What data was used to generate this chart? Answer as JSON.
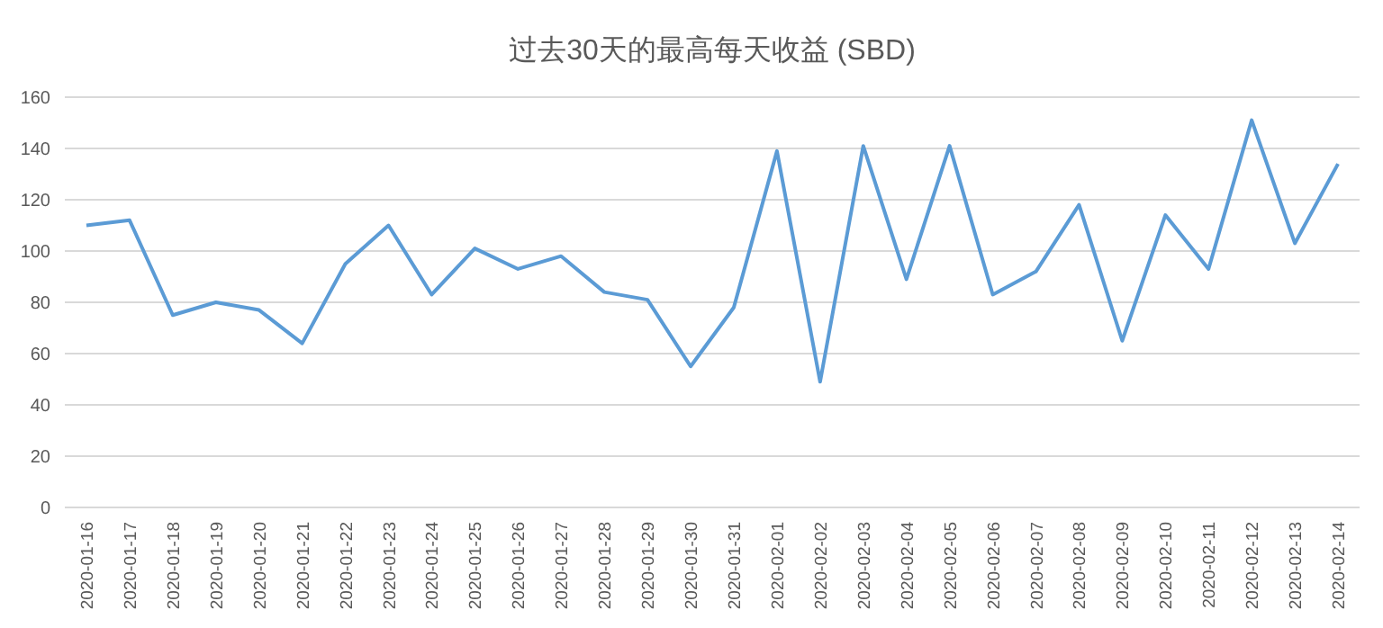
{
  "chart_data": {
    "type": "line",
    "title": "过去30天的最高每天收益 (SBD)",
    "categories": [
      "2020-01-16",
      "2020-01-17",
      "2020-01-18",
      "2020-01-19",
      "2020-01-20",
      "2020-01-21",
      "2020-01-22",
      "2020-01-23",
      "2020-01-24",
      "2020-01-25",
      "2020-01-26",
      "2020-01-27",
      "2020-01-28",
      "2020-01-29",
      "2020-01-30",
      "2020-01-31",
      "2020-02-01",
      "2020-02-02",
      "2020-02-03",
      "2020-02-04",
      "2020-02-05",
      "2020-02-06",
      "2020-02-07",
      "2020-02-08",
      "2020-02-09",
      "2020-02-10",
      "2020-02-11",
      "2020-02-12",
      "2020-02-13",
      "2020-02-14"
    ],
    "series": [
      {
        "color": "#5b9bd5",
        "values": [
          110,
          112,
          75,
          80,
          77,
          64,
          95,
          110,
          83,
          101,
          93,
          98,
          84,
          81,
          55,
          78,
          139,
          49,
          141,
          89,
          141,
          83,
          92,
          118,
          65,
          114,
          93,
          151,
          103,
          134
        ]
      }
    ],
    "ylim": [
      0,
      160
    ],
    "yticks": [
      0,
      20,
      40,
      60,
      80,
      100,
      120,
      140,
      160
    ],
    "grid": "y",
    "marker": "none",
    "line_style": "solid"
  }
}
